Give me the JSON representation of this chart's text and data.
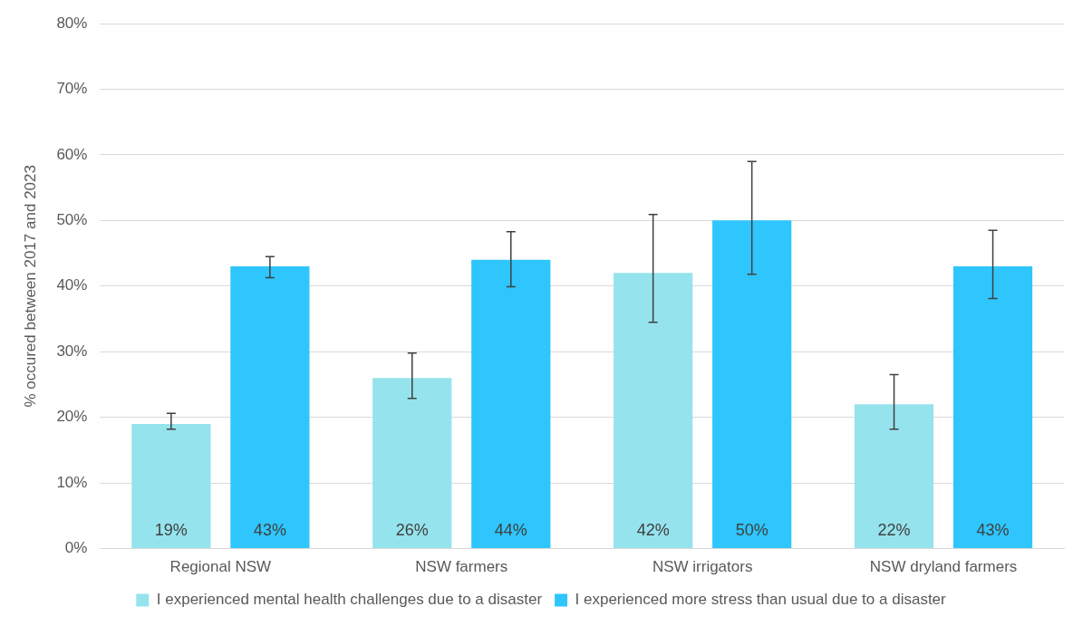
{
  "chart_data": {
    "type": "bar",
    "ylabel": "% occured between 2017 and 2023",
    "categories": [
      "Regional NSW",
      "NSW farmers",
      "NSW irrigators",
      "NSW dryland farmers"
    ],
    "series": [
      {
        "name": "I experienced mental health challenges due to a disaster",
        "color": "#95e3ed",
        "values": [
          19,
          26,
          42,
          22
        ],
        "value_labels": [
          "19%",
          "26%",
          "42%",
          "22%"
        ],
        "errors": [
          [
            18.2,
            20.6
          ],
          [
            22.9,
            29.8
          ],
          [
            34.5,
            50.9
          ],
          [
            18.2,
            26.5
          ]
        ]
      },
      {
        "name": "I experienced more stress than usual due to a disaster",
        "color": "#2ec6fc",
        "values": [
          43,
          44,
          50,
          43
        ],
        "value_labels": [
          "43%",
          "44%",
          "50%",
          "43%"
        ],
        "errors": [
          [
            41.3,
            44.5
          ],
          [
            39.9,
            48.3
          ],
          [
            41.8,
            59.0
          ],
          [
            38.1,
            48.5
          ]
        ]
      }
    ],
    "ylim": [
      0,
      80
    ],
    "yticks": [
      {
        "value": 0,
        "label": "0%"
      },
      {
        "value": 10,
        "label": "10%"
      },
      {
        "value": 20,
        "label": "20%"
      },
      {
        "value": 30,
        "label": "30%"
      },
      {
        "value": 40,
        "label": "40%"
      },
      {
        "value": 50,
        "label": "50%"
      },
      {
        "value": 60,
        "label": "60%"
      },
      {
        "value": 70,
        "label": "70%"
      },
      {
        "value": 80,
        "label": "80%"
      }
    ],
    "grid": "y",
    "legend": "bottom"
  }
}
